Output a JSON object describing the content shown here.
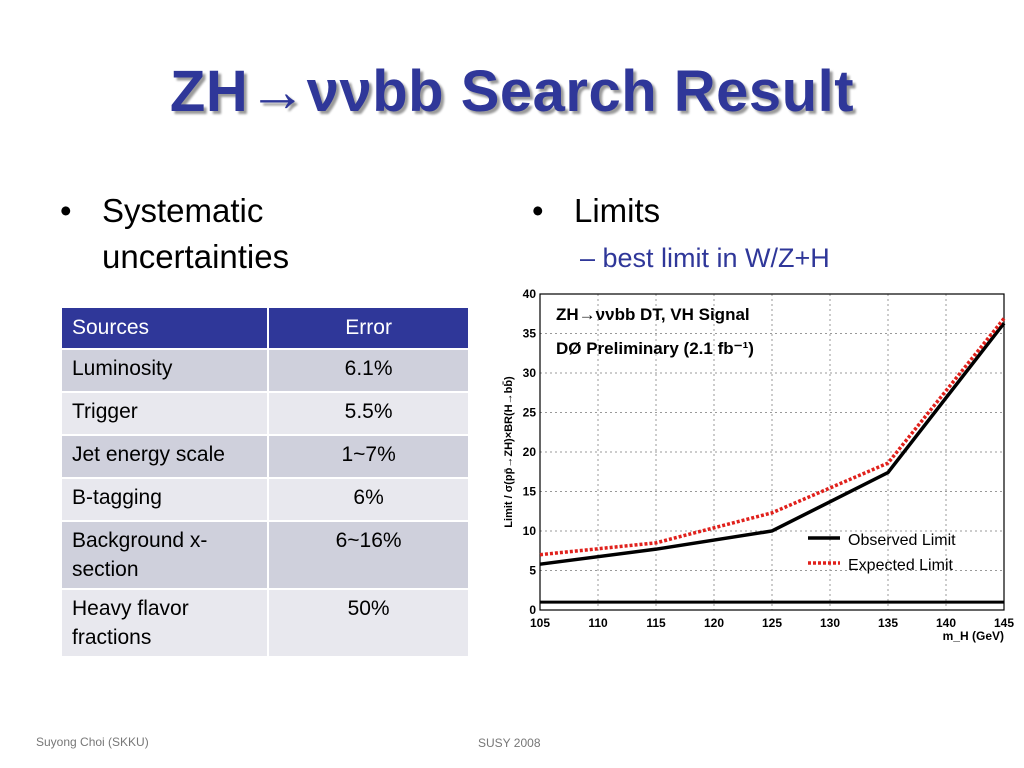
{
  "slide": {
    "title": "ZH→ννbb Search Result",
    "left_bullet": {
      "symbol": "•",
      "line1": "Systematic",
      "line2": "uncertainties"
    },
    "right_bullet": {
      "symbol": "•",
      "text": "Limits",
      "sub": "– best limit in W/Z+H"
    },
    "footer_left": "Suyong Choi (SKKU)",
    "footer_center": "SUSY 2008"
  },
  "table": {
    "headers": [
      "Sources",
      "Error"
    ],
    "rows": [
      {
        "source": "Luminosity",
        "error": "6.1%"
      },
      {
        "source": "Trigger",
        "error": "5.5%"
      },
      {
        "source": "Jet energy scale",
        "error": "1~7%"
      },
      {
        "source": "B-tagging",
        "error": "6%"
      },
      {
        "source": "Background x-section",
        "error": "6~16%"
      },
      {
        "source": "Heavy flavor fractions",
        "error": "50%"
      }
    ]
  },
  "colors": {
    "title": "#2f3799",
    "header_bg": "#2f3799",
    "row_a": "#cfd0dc",
    "row_b": "#e8e8ee",
    "observed": "#000000",
    "expected": "#e0201b"
  },
  "chart_data": {
    "type": "line",
    "annotation1": "ZH→ννbb DT, VH Signal",
    "annotation2": "DØ Preliminary (2.1 fb⁻¹)",
    "xlabel": "m_H (GeV)",
    "ylabel": "Limit / σ(pp̄→ZH)×BR(H→bb̄)",
    "xlim": [
      105,
      145
    ],
    "ylim": [
      0,
      40
    ],
    "xticks": [
      105,
      110,
      115,
      120,
      125,
      130,
      135,
      140,
      145
    ],
    "yticks": [
      0,
      5,
      10,
      15,
      20,
      25,
      30,
      35,
      40
    ],
    "x": [
      105,
      115,
      125,
      135,
      145
    ],
    "reference_line": 1,
    "grid": true,
    "legend_position": "lower-right",
    "series": [
      {
        "name": "Observed Limit",
        "values": [
          5.8,
          7.7,
          10.0,
          17.4,
          36.3
        ]
      },
      {
        "name": "Expected Limit",
        "values": [
          7.0,
          8.5,
          12.3,
          18.6,
          36.9
        ]
      }
    ]
  }
}
